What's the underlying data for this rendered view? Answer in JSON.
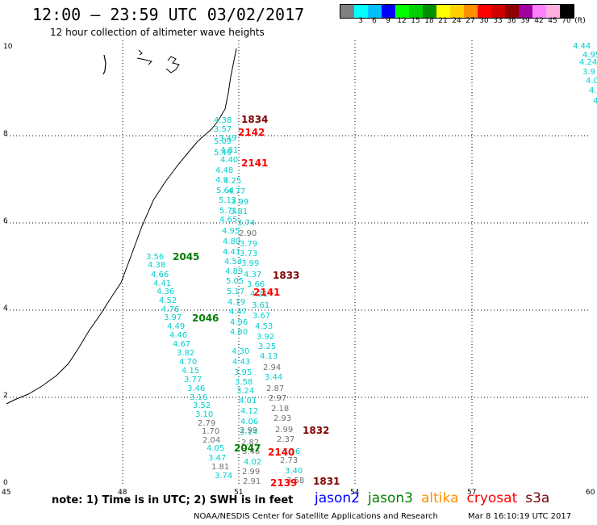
{
  "title": "12:00 – 23:59 UTC 03/02/2017",
  "subtitle": "12 hour collection of altimeter wave heights",
  "legend": {
    "colors": [
      "#808080",
      "#00ffff",
      "#00bfff",
      "#0000ff",
      "#00ff00",
      "#00d000",
      "#009000",
      "#ffff00",
      "#ffd000",
      "#ff9000",
      "#ff0000",
      "#d00000",
      "#900000",
      "#a000a0",
      "#ff80ff",
      "#ffb0e0",
      "#000000"
    ],
    "labels": [
      "3",
      "6",
      "9",
      "12",
      "15",
      "18",
      "21",
      "24",
      "27",
      "30",
      "33",
      "36",
      "39",
      "42",
      "45",
      "70",
      "(ft)"
    ]
  },
  "axes": {
    "x_ticks": [
      "45",
      "48",
      "51",
      "54",
      "57",
      "60"
    ],
    "y_ticks": [
      "10",
      "8",
      "6",
      "4",
      "2",
      "0"
    ]
  },
  "track_labels": [
    {
      "text": "1834",
      "color": "#800000"
    },
    {
      "text": "2142",
      "color": "#ff0000"
    },
    {
      "text": "2141",
      "color": "#ff0000"
    },
    {
      "text": "2045",
      "color": "#008000"
    },
    {
      "text": "1833",
      "color": "#800000"
    },
    {
      "text": "2141",
      "color": "#ff0000"
    },
    {
      "text": "2046",
      "color": "#008000"
    },
    {
      "text": "1832",
      "color": "#800000"
    },
    {
      "text": "2047",
      "color": "#008000"
    },
    {
      "text": "2140",
      "color": "#ff0000"
    },
    {
      "text": "2139",
      "color": "#ff0000"
    },
    {
      "text": "1831",
      "color": "#800000"
    }
  ],
  "value_labels": [
    {
      "text": "4.38",
      "color": "#00d0d0"
    },
    {
      "text": "3.57",
      "color": "#00d0d0"
    },
    {
      "text": "3.49",
      "color": "#00d0d0"
    },
    {
      "text": "5.09",
      "color": "#00d0d0"
    },
    {
      "text": "4.81",
      "color": "#00d0d0"
    },
    {
      "text": "5.49",
      "color": "#00d0d0"
    },
    {
      "text": "4.40",
      "color": "#00d0d0"
    },
    {
      "text": "4.48",
      "color": "#00d0d0"
    },
    {
      "text": "4.25",
      "color": "#00d0d0"
    },
    {
      "text": "4.9",
      "color": "#00d0d0"
    },
    {
      "text": "5.64",
      "color": "#00d0d0"
    },
    {
      "text": "4.77",
      "color": "#00d0d0"
    },
    {
      "text": "5.13",
      "color": "#00d0d0"
    },
    {
      "text": "3.99",
      "color": "#00d0d0"
    },
    {
      "text": "5.71",
      "color": "#00d0d0"
    },
    {
      "text": "3.81",
      "color": "#00d0d0"
    },
    {
      "text": "4.65",
      "color": "#00d0d0"
    },
    {
      "text": "3.74",
      "color": "#00d0d0"
    },
    {
      "text": "4.95",
      "color": "#00d0d0"
    },
    {
      "text": "2.90",
      "color": "#707070"
    },
    {
      "text": "4.80",
      "color": "#00d0d0"
    },
    {
      "text": "3.79",
      "color": "#00d0d0"
    },
    {
      "text": "4.41",
      "color": "#00d0d0"
    },
    {
      "text": "3.73",
      "color": "#00d0d0"
    },
    {
      "text": "4.54",
      "color": "#00d0d0"
    },
    {
      "text": "3.99",
      "color": "#00d0d0"
    },
    {
      "text": "4.89",
      "color": "#00d0d0"
    },
    {
      "text": "4.37",
      "color": "#00d0d0"
    },
    {
      "text": "5.05",
      "color": "#00d0d0"
    },
    {
      "text": "3.66",
      "color": "#00d0d0"
    },
    {
      "text": "5.17",
      "color": "#00d0d0"
    },
    {
      "text": "4.21",
      "color": "#00d0d0"
    },
    {
      "text": "4.19",
      "color": "#00d0d0"
    },
    {
      "text": "3.61",
      "color": "#00d0d0"
    },
    {
      "text": "4.47",
      "color": "#00d0d0"
    },
    {
      "text": "3.67",
      "color": "#00d0d0"
    },
    {
      "text": "4.96",
      "color": "#00d0d0"
    },
    {
      "text": "4.53",
      "color": "#00d0d0"
    },
    {
      "text": "4.80",
      "color": "#00d0d0"
    },
    {
      "text": "3.92",
      "color": "#00d0d0"
    },
    {
      "text": "4.30",
      "color": "#00d0d0"
    },
    {
      "text": "3.25",
      "color": "#00d0d0"
    },
    {
      "text": "4.43",
      "color": "#00d0d0"
    },
    {
      "text": "4.13",
      "color": "#00d0d0"
    },
    {
      "text": "3.95",
      "color": "#00d0d0"
    },
    {
      "text": "2.94",
      "color": "#707070"
    },
    {
      "text": "3.58",
      "color": "#00d0d0"
    },
    {
      "text": "3.44",
      "color": "#00d0d0"
    },
    {
      "text": "3.24",
      "color": "#00d0d0"
    },
    {
      "text": "2.87",
      "color": "#707070"
    },
    {
      "text": "4.01",
      "color": "#00d0d0"
    },
    {
      "text": "2.97",
      "color": "#707070"
    },
    {
      "text": "4.12",
      "color": "#00d0d0"
    },
    {
      "text": "2.18",
      "color": "#707070"
    },
    {
      "text": "4.06",
      "color": "#00d0d0"
    },
    {
      "text": "2.93",
      "color": "#707070"
    },
    {
      "text": "2.99",
      "color": "#707070"
    },
    {
      "text": "2.99",
      "color": "#707070"
    },
    {
      "text": "3.14",
      "color": "#00d0d0"
    },
    {
      "text": "2.37",
      "color": "#707070"
    },
    {
      "text": "2.82",
      "color": "#707070"
    },
    {
      "text": "3.16",
      "color": "#00d0d0"
    },
    {
      "text": "3.46",
      "color": "#707070"
    },
    {
      "text": "2.73",
      "color": "#707070"
    },
    {
      "text": "4.02",
      "color": "#00d0d0"
    },
    {
      "text": "3.40",
      "color": "#00d0d0"
    },
    {
      "text": "2.99",
      "color": "#707070"
    },
    {
      "text": "2.91",
      "color": "#707070"
    },
    {
      "text": "3.58",
      "color": "#707070"
    },
    {
      "text": "3.56",
      "color": "#00d0d0"
    },
    {
      "text": "4.38",
      "color": "#00d0d0"
    },
    {
      "text": "4.66",
      "color": "#00d0d0"
    },
    {
      "text": "4.41",
      "color": "#00d0d0"
    },
    {
      "text": "4.36",
      "color": "#00d0d0"
    },
    {
      "text": "4.52",
      "color": "#00d0d0"
    },
    {
      "text": "4.76",
      "color": "#00d0d0"
    },
    {
      "text": "3.97",
      "color": "#00d0d0"
    },
    {
      "text": "4.49",
      "color": "#00d0d0"
    },
    {
      "text": "4.46",
      "color": "#00d0d0"
    },
    {
      "text": "4.67",
      "color": "#00d0d0"
    },
    {
      "text": "3.82",
      "color": "#00d0d0"
    },
    {
      "text": "4.70",
      "color": "#00d0d0"
    },
    {
      "text": "4.15",
      "color": "#00d0d0"
    },
    {
      "text": "3.77",
      "color": "#00d0d0"
    },
    {
      "text": "3.46",
      "color": "#00d0d0"
    },
    {
      "text": "3.16",
      "color": "#00d0d0"
    },
    {
      "text": "3.52",
      "color": "#00d0d0"
    },
    {
      "text": "3.10",
      "color": "#00d0d0"
    },
    {
      "text": "2.79",
      "color": "#707070"
    },
    {
      "text": "1.70",
      "color": "#707070"
    },
    {
      "text": "2.04",
      "color": "#707070"
    },
    {
      "text": "4.05",
      "color": "#00d0d0"
    },
    {
      "text": "3.47",
      "color": "#00d0d0"
    },
    {
      "text": "1.81",
      "color": "#707070"
    },
    {
      "text": "3.74",
      "color": "#00d0d0"
    },
    {
      "text": "4.44",
      "color": "#00d0d0"
    },
    {
      "text": "4.95",
      "color": "#00d0d0"
    },
    {
      "text": "4.24",
      "color": "#00d0d0"
    },
    {
      "text": "3.9",
      "color": "#00d0d0"
    },
    {
      "text": "4.0",
      "color": "#00d0d0"
    },
    {
      "text": "4.",
      "color": "#00d0d0"
    },
    {
      "text": "4",
      "color": "#00d0d0"
    }
  ],
  "note": "note: 1) Time is in UTC; 2) SWH is in feet",
  "satellites": [
    {
      "name": "jason2",
      "color": "#0000ff"
    },
    {
      "name": "jason3",
      "color": "#008000"
    },
    {
      "name": "altika",
      "color": "#ff9000"
    },
    {
      "name": "cryosat",
      "color": "#ff0000"
    },
    {
      "name": "s3a",
      "color": "#800000"
    }
  ],
  "footer_left": "NOAA/NESDIS Center for Satellite Applications and Research",
  "footer_right": "Mar  8 16:10:19 UTC 2017"
}
